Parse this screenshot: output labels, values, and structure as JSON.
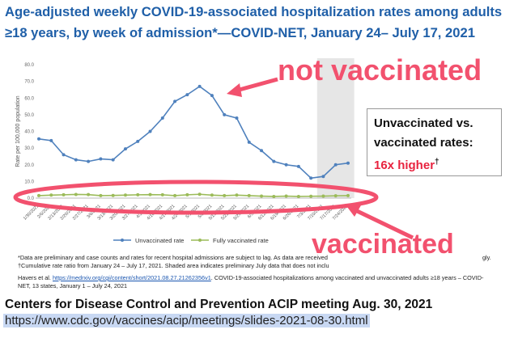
{
  "title": "Age-adjusted weekly COVID-19-associated hospitalization rates among adults ≥18 years, by week of admission*—COVID-NET, January 24– July 17, 2021",
  "annotations": {
    "not_vaccinated": "not vaccinated",
    "vaccinated": "vaccinated",
    "callout_line1": "Unvaccinated vs.",
    "callout_line2": "vaccinated rates:",
    "callout_line3": "16x higher",
    "callout_dagger": "†"
  },
  "footnotes": {
    "note1": "*Data are preliminary and case counts and rates for recent hospital admissions are subject to lag. As data are received",
    "note1_end": "gly.",
    "note2": "†Cumulative rate ratio from January 24 – July 17, 2021. Shaded area indicates preliminary July data that does not inclu",
    "havers_prefix": "Havers et al.",
    "havers_link": "https://medrxiv.org/cgi/content/short/2021.08.27.21262356v1",
    "havers_text": ". COVID-19-associated hospitalizations among vaccinated and unvaccinated adults ≥18 years – COVID-NET, 13 states, January 1 – July 24, 2021"
  },
  "source": {
    "title": "Centers for Disease Control and Prevention ACIP meeting Aug. 30, 2021",
    "url": "https://www.cdc.gov/vaccines/acip/meetings/slides-2021-08-30.html"
  },
  "colors": {
    "title": "#1f5fa8",
    "unvaccinated": "#4f81bd",
    "vaccinated": "#9bbb59",
    "highlight": "#f2516e",
    "shade": "#e6e6e6"
  },
  "chart_data": {
    "type": "line",
    "title": "",
    "xlabel": "",
    "ylabel": "Rate per 100,000 population",
    "ylim": [
      0,
      80
    ],
    "yticks": [
      "0.0",
      "10.0",
      "20.0",
      "30.0",
      "40.0",
      "50.0",
      "60.0",
      "70.0",
      "80.0"
    ],
    "grid": false,
    "legend_position": "bottom",
    "shaded_region": [
      "7/10/2021",
      "7/24/2021"
    ],
    "categories": [
      "1/30/2021",
      "2/6/2021",
      "2/13/2021",
      "2/20/2021",
      "2/27/2021",
      "3/6/2021",
      "3/13/2021",
      "3/20/2021",
      "3/27/2021",
      "4/3/2021",
      "4/10/2021",
      "4/17/2021",
      "4/24/2021",
      "5/1/2021",
      "5/8/2021",
      "5/15/2021",
      "5/22/2021",
      "5/29/2021",
      "6/5/2021",
      "6/12/2021",
      "6/19/2021",
      "6/26/2021",
      "7/3/2021",
      "7/10/2021",
      "7/17/2021",
      "7/24/2021"
    ],
    "series": [
      {
        "name": "Unvaccinated rate",
        "values": [
          35.5,
          34.5,
          26,
          23,
          22,
          23.5,
          23,
          29.5,
          34,
          40,
          48,
          58,
          62,
          67,
          61.5,
          50,
          48,
          33.5,
          28.5,
          22,
          20,
          19,
          12,
          13,
          20,
          21
        ]
      },
      {
        "name": "Fully vaccinated rate",
        "values": [
          1.5,
          1.8,
          2,
          2.2,
          2.1,
          1.5,
          1.6,
          1.8,
          2,
          2.1,
          2,
          1.5,
          2,
          2.3,
          1.8,
          1.5,
          1.8,
          1.5,
          1.2,
          1,
          1.2,
          1,
          1.1,
          1.2,
          1.4,
          1.5
        ]
      }
    ]
  }
}
